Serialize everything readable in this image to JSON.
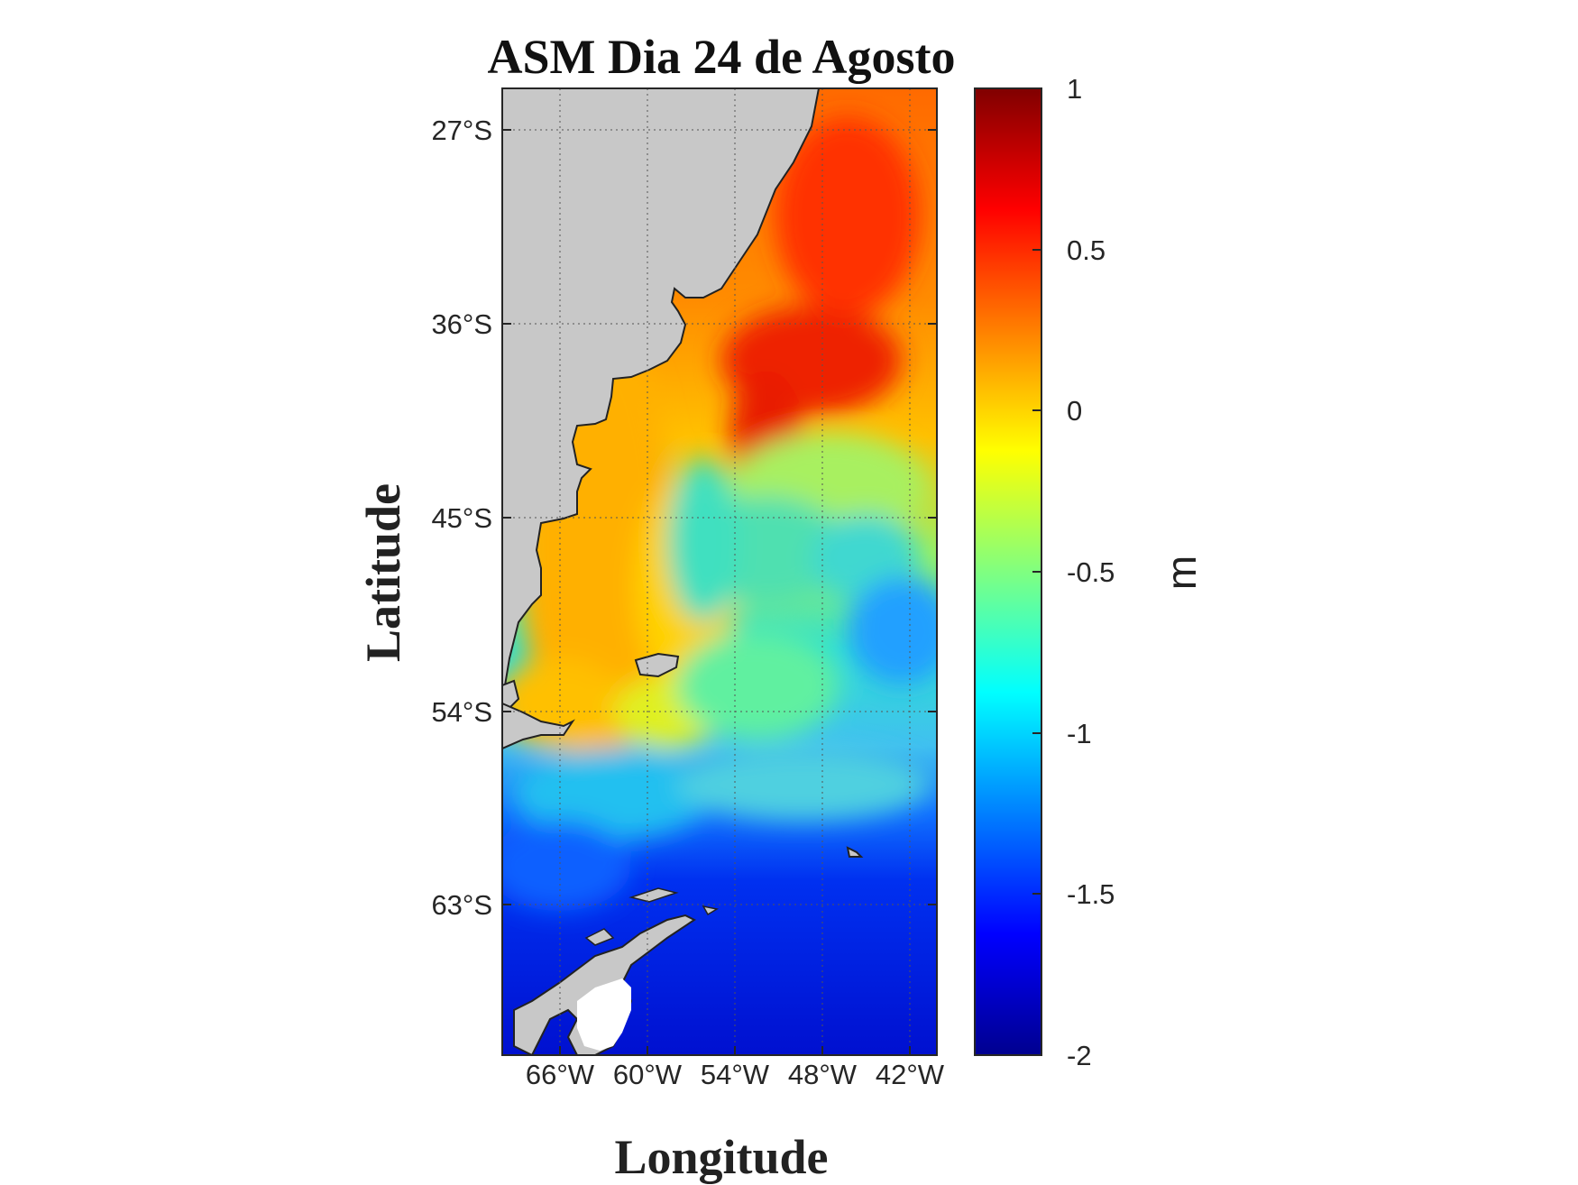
{
  "title": "ASM Dia 24 de Agosto",
  "map": {
    "xlabel": "Longitude",
    "ylabel": "Latitude",
    "lat_ticks": [
      "27°S",
      "36°S",
      "45°S",
      "54°S",
      "63°S"
    ],
    "lon_ticks": [
      "66°W",
      "60°W",
      "54°W",
      "48°W",
      "42°W"
    ],
    "grid": "dotted",
    "land_color": "#c8c8c8"
  },
  "colorbar": {
    "label": "m",
    "ticks": [
      "1",
      "0.5",
      "0",
      "-0.5",
      "-1",
      "-1.5",
      "-2"
    ],
    "range": [
      -2,
      1
    ],
    "colormap": "jet"
  }
}
